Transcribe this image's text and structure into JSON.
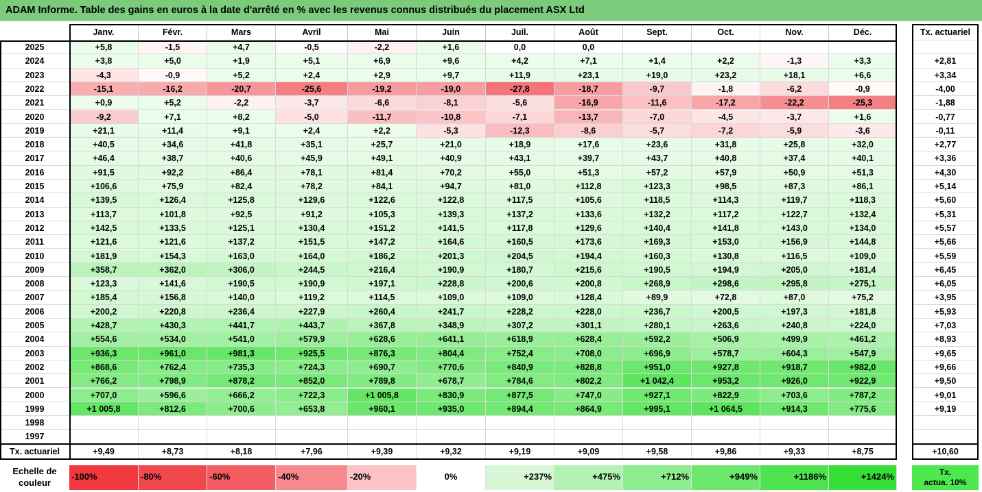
{
  "title": "ADAM Informe. Table des gains en euros à la date d'arrêté en % avec les revenus connus distribués du placement ASX Ltd",
  "columns": [
    "Janv.",
    "Févr.",
    "Mars",
    "Avril",
    "Mai",
    "Juin",
    "Juil.",
    "Août",
    "Sept.",
    "Oct.",
    "Nov.",
    "Déc."
  ],
  "rate_header": "Tx. actuariel",
  "rows": [
    {
      "year": "2025",
      "values": [
        "+5,8",
        "-1,5",
        "+4,7",
        "-0,5",
        "-2,2",
        "+1,6",
        "0,0",
        "0,0",
        "",
        "",
        "",
        ""
      ],
      "rate": ""
    },
    {
      "year": "2024",
      "values": [
        "+3,8",
        "+5,0",
        "+1,9",
        "+5,1",
        "+6,9",
        "+9,6",
        "+4,2",
        "+7,1",
        "+1,4",
        "+2,2",
        "-1,3",
        "+3,3"
      ],
      "rate": "+2,81"
    },
    {
      "year": "2023",
      "values": [
        "-4,3",
        "-0,9",
        "+5,2",
        "+2,4",
        "+2,9",
        "+9,7",
        "+11,9",
        "+23,1",
        "+19,0",
        "+23,2",
        "+18,1",
        "+6,6"
      ],
      "rate": "+3,34"
    },
    {
      "year": "2022",
      "values": [
        "-15,1",
        "-16,2",
        "-20,7",
        "-25,6",
        "-19,2",
        "-19,0",
        "-27,8",
        "-18,7",
        "-9,7",
        "-1,8",
        "-6,2",
        "-0,9"
      ],
      "rate": "-4,00"
    },
    {
      "year": "2021",
      "values": [
        "+0,9",
        "+5,2",
        "-2,2",
        "-3,7",
        "-6,6",
        "-8,1",
        "-5,6",
        "-16,9",
        "-11,6",
        "-17,2",
        "-22,2",
        "-25,3"
      ],
      "rate": "-1,88"
    },
    {
      "year": "2020",
      "values": [
        "-9,2",
        "+7,1",
        "+8,2",
        "-5,0",
        "-11,7",
        "-10,8",
        "-7,1",
        "-13,7",
        "-7,0",
        "-4,5",
        "-3,7",
        "+1,6"
      ],
      "rate": "-0,77"
    },
    {
      "year": "2019",
      "values": [
        "+21,1",
        "+11,4",
        "+9,1",
        "+2,4",
        "+2,2",
        "-5,3",
        "-12,3",
        "-8,6",
        "-5,7",
        "-7,2",
        "-5,9",
        "-3,6"
      ],
      "rate": "-0,11"
    },
    {
      "year": "2018",
      "values": [
        "+40,5",
        "+34,6",
        "+41,8",
        "+35,1",
        "+25,7",
        "+21,0",
        "+18,9",
        "+17,6",
        "+23,6",
        "+31,8",
        "+25,8",
        "+32,0"
      ],
      "rate": "+2,77"
    },
    {
      "year": "2017",
      "values": [
        "+46,4",
        "+38,7",
        "+40,6",
        "+45,9",
        "+49,1",
        "+40,9",
        "+43,1",
        "+39,7",
        "+43,7",
        "+40,8",
        "+37,4",
        "+40,1"
      ],
      "rate": "+3,36"
    },
    {
      "year": "2016",
      "values": [
        "+91,5",
        "+92,2",
        "+86,4",
        "+78,1",
        "+81,4",
        "+70,2",
        "+55,0",
        "+51,3",
        "+57,2",
        "+57,9",
        "+50,9",
        "+51,3"
      ],
      "rate": "+4,30"
    },
    {
      "year": "2015",
      "values": [
        "+106,6",
        "+75,9",
        "+82,4",
        "+78,2",
        "+84,1",
        "+94,7",
        "+81,0",
        "+112,8",
        "+123,3",
        "+98,5",
        "+87,3",
        "+86,1"
      ],
      "rate": "+5,14"
    },
    {
      "year": "2014",
      "values": [
        "+139,5",
        "+126,4",
        "+125,8",
        "+129,6",
        "+122,6",
        "+122,8",
        "+117,5",
        "+105,6",
        "+118,5",
        "+114,3",
        "+119,7",
        "+118,3"
      ],
      "rate": "+5,60"
    },
    {
      "year": "2013",
      "values": [
        "+113,7",
        "+101,8",
        "+92,5",
        "+91,2",
        "+105,3",
        "+139,3",
        "+137,2",
        "+133,6",
        "+132,2",
        "+117,2",
        "+122,7",
        "+132,4"
      ],
      "rate": "+5,31"
    },
    {
      "year": "2012",
      "values": [
        "+142,5",
        "+133,5",
        "+125,1",
        "+130,4",
        "+151,2",
        "+141,5",
        "+117,8",
        "+129,6",
        "+140,4",
        "+141,8",
        "+143,0",
        "+134,0"
      ],
      "rate": "+5,57"
    },
    {
      "year": "2011",
      "values": [
        "+121,6",
        "+121,6",
        "+137,2",
        "+151,5",
        "+147,2",
        "+164,6",
        "+160,5",
        "+173,6",
        "+169,3",
        "+153,0",
        "+156,9",
        "+144,8"
      ],
      "rate": "+5,66"
    },
    {
      "year": "2010",
      "values": [
        "+181,9",
        "+154,3",
        "+163,0",
        "+164,0",
        "+186,2",
        "+201,3",
        "+204,5",
        "+194,4",
        "+160,3",
        "+130,8",
        "+116,5",
        "+109,0"
      ],
      "rate": "+5,59"
    },
    {
      "year": "2009",
      "values": [
        "+358,7",
        "+362,0",
        "+306,0",
        "+244,5",
        "+216,4",
        "+190,9",
        "+180,7",
        "+215,6",
        "+190,5",
        "+194,9",
        "+205,0",
        "+181,4"
      ],
      "rate": "+6,45"
    },
    {
      "year": "2008",
      "values": [
        "+123,3",
        "+141,6",
        "+190,5",
        "+190,9",
        "+197,1",
        "+228,8",
        "+200,6",
        "+200,8",
        "+268,9",
        "+298,6",
        "+295,8",
        "+275,1"
      ],
      "rate": "+6,05"
    },
    {
      "year": "2007",
      "values": [
        "+185,4",
        "+156,8",
        "+140,0",
        "+119,2",
        "+114,5",
        "+109,0",
        "+109,0",
        "+128,4",
        "+89,9",
        "+72,8",
        "+87,0",
        "+75,2"
      ],
      "rate": "+3,95"
    },
    {
      "year": "2006",
      "values": [
        "+200,2",
        "+220,8",
        "+236,4",
        "+227,9",
        "+260,4",
        "+241,7",
        "+228,2",
        "+228,0",
        "+236,7",
        "+200,5",
        "+197,3",
        "+181,8"
      ],
      "rate": "+5,93"
    },
    {
      "year": "2005",
      "values": [
        "+428,7",
        "+430,3",
        "+441,7",
        "+443,7",
        "+367,8",
        "+348,9",
        "+307,2",
        "+301,1",
        "+280,1",
        "+263,6",
        "+240,8",
        "+224,0"
      ],
      "rate": "+7,03"
    },
    {
      "year": "2004",
      "values": [
        "+554,6",
        "+534,0",
        "+541,0",
        "+579,9",
        "+628,6",
        "+641,1",
        "+618,9",
        "+628,4",
        "+592,2",
        "+506,9",
        "+499,9",
        "+461,2"
      ],
      "rate": "+8,93"
    },
    {
      "year": "2003",
      "values": [
        "+936,3",
        "+961,0",
        "+981,3",
        "+925,5",
        "+876,3",
        "+804,4",
        "+752,4",
        "+708,0",
        "+696,9",
        "+578,7",
        "+604,3",
        "+547,9"
      ],
      "rate": "+9,65"
    },
    {
      "year": "2002",
      "values": [
        "+868,6",
        "+762,4",
        "+735,3",
        "+724,3",
        "+690,7",
        "+770,6",
        "+840,9",
        "+828,8",
        "+951,0",
        "+927,8",
        "+918,7",
        "+982,0"
      ],
      "rate": "+9,66"
    },
    {
      "year": "2001",
      "values": [
        "+766,2",
        "+798,9",
        "+878,2",
        "+852,0",
        "+789,8",
        "+678,7",
        "+784,6",
        "+802,2",
        "+1 042,4",
        "+953,2",
        "+926,0",
        "+922,9"
      ],
      "rate": "+9,50"
    },
    {
      "year": "2000",
      "values": [
        "+707,0",
        "+596,6",
        "+666,2",
        "+722,3",
        "+1 005,8",
        "+830,9",
        "+877,5",
        "+747,0",
        "+927,1",
        "+822,9",
        "+703,6",
        "+787,2"
      ],
      "rate": "+9,01"
    },
    {
      "year": "1999",
      "values": [
        "+1 005,8",
        "+812,6",
        "+700,6",
        "+653,8",
        "+960,1",
        "+935,0",
        "+894,4",
        "+864,9",
        "+995,1",
        "+1 064,5",
        "+914,3",
        "+775,6"
      ],
      "rate": "+9,19"
    },
    {
      "year": "1998",
      "values": [
        "",
        "",
        "",
        "",
        "",
        "",
        "",
        "",
        "",
        "",
        "",
        ""
      ],
      "rate": ""
    },
    {
      "year": "1997",
      "values": [
        "",
        "",
        "",
        "",
        "",
        "",
        "",
        "",
        "",
        "",
        "",
        ""
      ],
      "rate": ""
    }
  ],
  "footer": {
    "label": "Tx. actuariel",
    "values": [
      "+9,49",
      "+8,73",
      "+8,18",
      "+7,96",
      "+9,39",
      "+9,32",
      "+9,19",
      "+9,09",
      "+9,58",
      "+9,86",
      "+9,33",
      "+8,75"
    ],
    "rate": "+10,60"
  },
  "legend": {
    "label_line1": "Echelle de",
    "label_line2": "couleur",
    "items": [
      {
        "label": "-100%",
        "color": "#f0393f"
      },
      {
        "label": "-80%",
        "color": "#f1484e"
      },
      {
        "label": "-60%",
        "color": "#f35d62"
      },
      {
        "label": "-40%",
        "color": "#f7898c"
      },
      {
        "label": "-20%",
        "color": "#fbc3c5"
      },
      {
        "label": "0%",
        "color": "#ffffff"
      },
      {
        "label": "+237%",
        "color": "#d7f7d7"
      },
      {
        "label": "+475%",
        "color": "#b3f2b3"
      },
      {
        "label": "+712%",
        "color": "#8eed8e"
      },
      {
        "label": "+949%",
        "color": "#6ce86c"
      },
      {
        "label": "+1186%",
        "color": "#4ee34e"
      },
      {
        "label": "+1424%",
        "color": "#36df36"
      }
    ],
    "tx_line1": "Tx.",
    "tx_line2": "actua. 10%",
    "tx_color": "#4de84d"
  },
  "colors": {
    "title_bg": "#7ccb7c",
    "negative_max": "#f0393f",
    "positive_max": "#36df36"
  }
}
